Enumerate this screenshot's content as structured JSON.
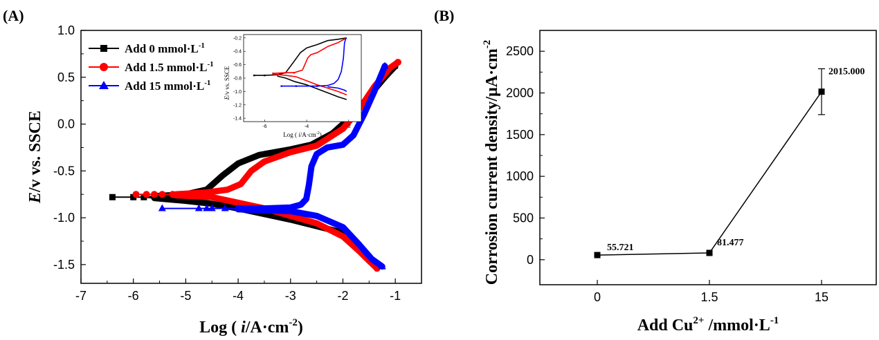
{
  "chart_data": [
    {
      "panel": "(A)",
      "type": "line",
      "xlabel_prefix": "Log ( ",
      "xlabel_italic": "i",
      "xlabel_suffix": "/A·cm",
      "xlabel_sup": "-2",
      "xlabel_close": ")",
      "ylabel_italic": "E",
      "ylabel_rest": "/v vs. SSCE",
      "xlim": [
        -7,
        -0.5
      ],
      "ylim": [
        -1.7,
        1.0
      ],
      "xticks": [
        "-7",
        "-6",
        "-5",
        "-4",
        "-3",
        "-2",
        "-1"
      ],
      "yticks": [
        "-1.5",
        "-1.0",
        "-0.5",
        "0.0",
        "0.5",
        "1.0"
      ],
      "legend_position": "top-left",
      "series": [
        {
          "name": "Add 0 mmol·L",
          "sup": "-1",
          "color": "#000000",
          "marker": "square",
          "markers": [
            [
              -6.4,
              -0.78
            ],
            [
              -6.0,
              -0.78
            ],
            [
              -5.8,
              -0.78
            ]
          ],
          "anodic": [
            [
              -5.6,
              -0.77
            ],
            [
              -5.0,
              -0.75
            ],
            [
              -4.6,
              -0.7
            ],
            [
              -4.3,
              -0.55
            ],
            [
              -4.0,
              -0.42
            ],
            [
              -3.6,
              -0.33
            ],
            [
              -3.0,
              -0.27
            ],
            [
              -2.6,
              -0.22
            ],
            [
              -2.2,
              -0.1
            ],
            [
              -1.8,
              0.1
            ],
            [
              -1.5,
              0.3
            ],
            [
              -1.2,
              0.5
            ],
            [
              -1.0,
              0.62
            ]
          ],
          "cathodic": [
            [
              -5.6,
              -0.79
            ],
            [
              -5.0,
              -0.82
            ],
            [
              -4.5,
              -0.85
            ],
            [
              -4.0,
              -0.9
            ],
            [
              -3.5,
              -0.96
            ],
            [
              -3.0,
              -1.02
            ],
            [
              -2.5,
              -1.09
            ],
            [
              -2.0,
              -1.16
            ]
          ]
        },
        {
          "name": "Add 1.5 mmol·L",
          "sup": "-1",
          "color": "#ff0000",
          "marker": "circle",
          "markers": [
            [
              -5.95,
              -0.75
            ],
            [
              -5.75,
              -0.75
            ],
            [
              -5.6,
              -0.75
            ],
            [
              -5.45,
              -0.75
            ],
            [
              -5.25,
              -0.75
            ]
          ],
          "anodic": [
            [
              -5.2,
              -0.75
            ],
            [
              -4.6,
              -0.73
            ],
            [
              -4.2,
              -0.7
            ],
            [
              -3.95,
              -0.64
            ],
            [
              -3.75,
              -0.5
            ],
            [
              -3.5,
              -0.4
            ],
            [
              -3.0,
              -0.3
            ],
            [
              -2.5,
              -0.23
            ],
            [
              -2.0,
              -0.05
            ],
            [
              -1.7,
              0.15
            ],
            [
              -1.4,
              0.4
            ],
            [
              -1.1,
              0.6
            ],
            [
              -0.95,
              0.66
            ]
          ],
          "cathodic": [
            [
              -5.2,
              -0.76
            ],
            [
              -4.5,
              -0.78
            ],
            [
              -4.0,
              -0.84
            ],
            [
              -3.5,
              -0.9
            ],
            [
              -3.0,
              -0.98
            ],
            [
              -2.5,
              -1.06
            ],
            [
              -2.0,
              -1.2
            ],
            [
              -1.7,
              -1.35
            ],
            [
              -1.5,
              -1.46
            ],
            [
              -1.35,
              -1.54
            ]
          ]
        },
        {
          "name": "Add 15 mmol·L",
          "sup": "-1",
          "color": "#0000ff",
          "marker": "triangle",
          "markers": [
            [
              -5.45,
              -0.9
            ],
            [
              -4.75,
              -0.9
            ],
            [
              -4.6,
              -0.9
            ],
            [
              -4.5,
              -0.9
            ],
            [
              -4.25,
              -0.9
            ],
            [
              -4.0,
              -0.9
            ]
          ],
          "anodic": [
            [
              -4.0,
              -0.9
            ],
            [
              -3.5,
              -0.9
            ],
            [
              -3.0,
              -0.89
            ],
            [
              -2.8,
              -0.86
            ],
            [
              -2.7,
              -0.8
            ],
            [
              -2.65,
              -0.65
            ],
            [
              -2.6,
              -0.45
            ],
            [
              -2.5,
              -0.32
            ],
            [
              -2.3,
              -0.25
            ],
            [
              -2.0,
              -0.22
            ],
            [
              -1.8,
              -0.12
            ],
            [
              -1.6,
              0.1
            ],
            [
              -1.4,
              0.35
            ],
            [
              -1.25,
              0.55
            ],
            [
              -1.2,
              0.62
            ]
          ],
          "cathodic": [
            [
              -4.0,
              -0.91
            ],
            [
              -3.5,
              -0.92
            ],
            [
              -3.0,
              -0.93
            ],
            [
              -2.5,
              -0.98
            ],
            [
              -2.0,
              -1.1
            ],
            [
              -1.7,
              -1.28
            ],
            [
              -1.45,
              -1.44
            ],
            [
              -1.25,
              -1.52
            ]
          ]
        }
      ],
      "inset": {
        "xlabel_prefix": "Log ( ",
        "xlabel_italic": "i",
        "xlabel_suffix": "/A·cm",
        "xlabel_sup": "-2",
        "xlabel_close": ")",
        "ylabel_italic": "E",
        "ylabel_rest": "/v vs. SSCE",
        "xlim": [
          -7,
          -1.4
        ],
        "ylim": [
          -1.45,
          -0.15
        ],
        "xticks": [
          [
            "-6",
            -6
          ],
          [
            "-4",
            -4
          ],
          [
            "-2",
            -2
          ]
        ],
        "yticks": [
          [
            "-0.2",
            -0.2
          ],
          [
            "-0.4",
            -0.4
          ],
          [
            "-0.6",
            -0.6
          ],
          [
            "-0.8",
            -0.8
          ],
          [
            "-1.0",
            -1.0
          ],
          [
            "-1.2",
            -1.2
          ],
          [
            "-1.4",
            -1.4
          ]
        ],
        "series": [
          {
            "color": "#000000",
            "anodic": [
              [
                -6.5,
                -0.76
              ],
              [
                -6.0,
                -0.76
              ],
              [
                -5.4,
                -0.75
              ],
              [
                -5.0,
                -0.72
              ],
              [
                -4.6,
                -0.55
              ],
              [
                -4.3,
                -0.42
              ],
              [
                -4.0,
                -0.35
              ],
              [
                -3.5,
                -0.3
              ],
              [
                -3.0,
                -0.24
              ],
              [
                -2.5,
                -0.22
              ],
              [
                -2.1,
                -0.2
              ]
            ],
            "cathodic": [
              [
                -5.4,
                -0.77
              ],
              [
                -5.0,
                -0.8
              ],
              [
                -4.6,
                -0.85
              ],
              [
                -4.0,
                -0.9
              ],
              [
                -3.5,
                -0.96
              ],
              [
                -3.0,
                -1.02
              ],
              [
                -2.5,
                -1.08
              ],
              [
                -2.1,
                -1.12
              ]
            ]
          },
          {
            "color": "#ff0000",
            "anodic": [
              [
                -5.6,
                -0.73
              ],
              [
                -5.0,
                -0.72
              ],
              [
                -4.6,
                -0.72
              ],
              [
                -4.2,
                -0.68
              ],
              [
                -3.95,
                -0.5
              ],
              [
                -3.8,
                -0.45
              ],
              [
                -3.5,
                -0.42
              ],
              [
                -3.0,
                -0.33
              ],
              [
                -2.5,
                -0.27
              ],
              [
                -2.1,
                -0.2
              ]
            ],
            "cathodic": [
              [
                -5.6,
                -0.74
              ],
              [
                -5.0,
                -0.76
              ],
              [
                -4.5,
                -0.78
              ],
              [
                -4.0,
                -0.84
              ],
              [
                -3.5,
                -0.9
              ],
              [
                -3.0,
                -0.95
              ],
              [
                -2.5,
                -1.0
              ],
              [
                -2.1,
                -1.05
              ]
            ]
          },
          {
            "color": "#0000ff",
            "anodic": [
              [
                -5.2,
                -0.92
              ],
              [
                -4.5,
                -0.92
              ],
              [
                -3.5,
                -0.92
              ],
              [
                -3.0,
                -0.91
              ],
              [
                -2.7,
                -0.88
              ],
              [
                -2.5,
                -0.82
              ],
              [
                -2.35,
                -0.7
              ],
              [
                -2.25,
                -0.5
              ],
              [
                -2.2,
                -0.28
              ],
              [
                -2.15,
                -0.22
              ],
              [
                -2.1,
                -0.2
              ]
            ],
            "cathodic": [
              [
                -3.0,
                -0.93
              ],
              [
                -2.5,
                -0.95
              ],
              [
                -2.2,
                -0.98
              ],
              [
                -2.1,
                -1.0
              ]
            ]
          }
        ]
      }
    },
    {
      "panel": "(B)",
      "type": "line",
      "categories": [
        "0",
        "1.5",
        "15"
      ],
      "values": [
        55.721,
        81.477,
        2015.0
      ],
      "data_labels": [
        "55.721",
        "81.477",
        "2015.000"
      ],
      "error_bar": {
        "index": 2,
        "low": 1740,
        "high": 2290
      },
      "xlabel_prefix": "Add Cu",
      "xlabel_sup": "2+",
      "xlabel_suffix": " /mmol·L",
      "xlabel_sup2": "-1",
      "ylabel_text": "Corrosion current  density/μA·cm",
      "ylabel_sup": "-2",
      "ylim": [
        -300,
        2750
      ],
      "yticks": [
        "0",
        "500",
        "1000",
        "1500",
        "2000",
        "2500"
      ],
      "color": "#000000",
      "marker": "square"
    }
  ]
}
